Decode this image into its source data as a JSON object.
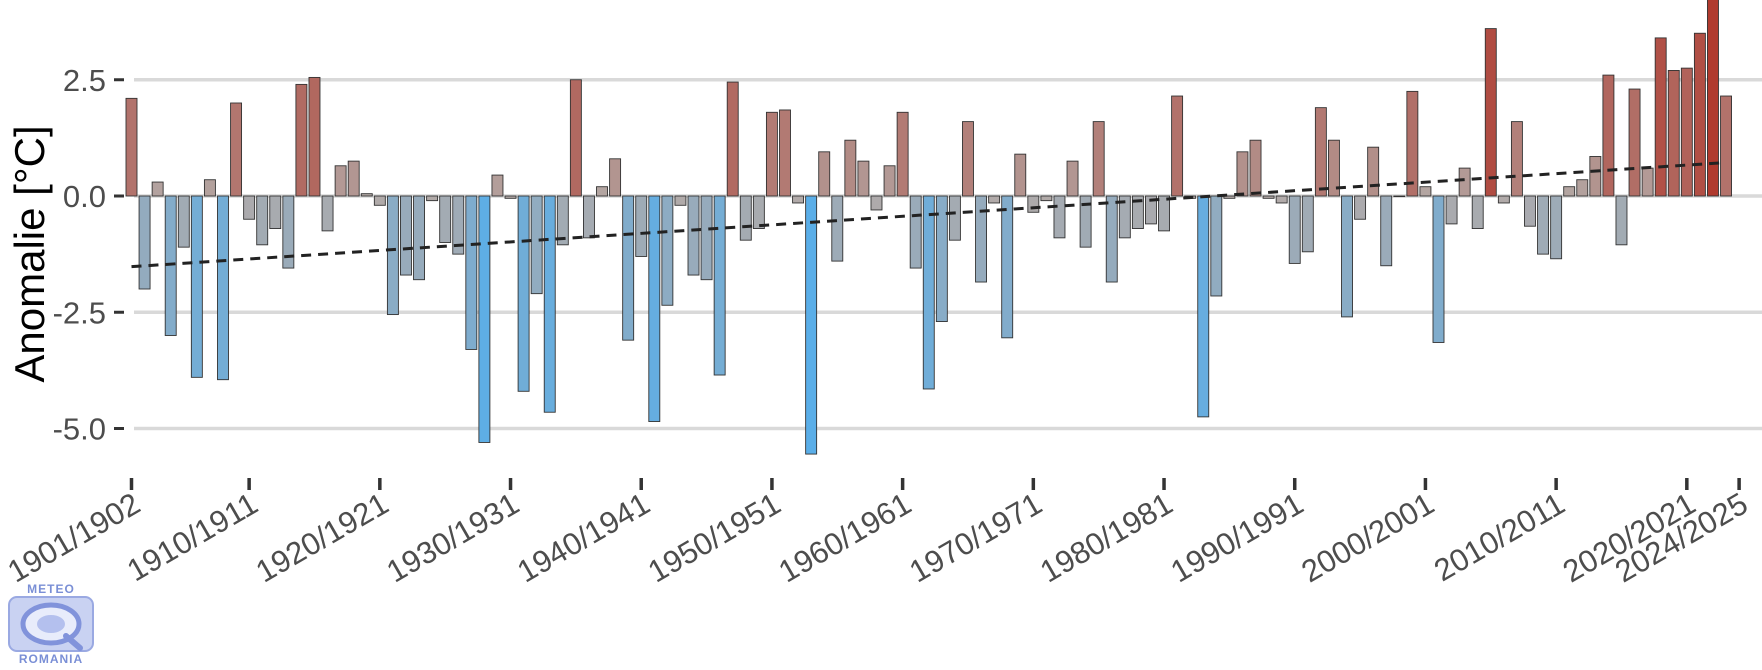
{
  "logo": {
    "top_text": "METEO",
    "bottom_text": "ROMANIA"
  },
  "chart_data": {
    "type": "bar",
    "title": "",
    "xlabel": "",
    "ylabel": "Anomalie [°C]",
    "ylim": [
      -5.7,
      4.2
    ],
    "yticks": [
      2.5,
      0.0,
      -2.5,
      -5.0
    ],
    "ytick_labels": [
      "2.5",
      "0.0",
      "-2.5",
      "-5.0"
    ],
    "grid": "horizontal",
    "x_start": 1901,
    "xticks": [
      1901,
      1910,
      1920,
      1930,
      1940,
      1950,
      1960,
      1970,
      1980,
      1990,
      2000,
      2010,
      2020,
      2024
    ],
    "xtick_labels": [
      "1901/1902",
      "1910/1911",
      "1920/1921",
      "1930/1931",
      "1940/1941",
      "1950/1951",
      "1960/1961",
      "1970/1971",
      "1980/1981",
      "1990/1991",
      "2000/2001",
      "2010/2011",
      "2020/2021",
      "2024/2025"
    ],
    "colors": {
      "warm": "#b03a2e",
      "neutral": "#b3aaa7",
      "cold": "#5aaee8",
      "trend": "#222222",
      "grid": "#d9d9d9"
    },
    "trend": {
      "start": -1.52,
      "end": 0.72
    },
    "values": [
      2.1,
      -2.0,
      0.3,
      -3.0,
      -1.1,
      -3.9,
      0.35,
      -3.95,
      2.0,
      -0.5,
      -1.05,
      -0.7,
      -1.55,
      2.4,
      2.55,
      -0.75,
      0.65,
      0.75,
      0.05,
      -0.2,
      -2.55,
      -1.7,
      -1.8,
      -0.1,
      -1.0,
      -1.25,
      -3.3,
      -5.3,
      0.45,
      -0.05,
      -4.2,
      -2.1,
      -4.65,
      -1.05,
      2.5,
      -0.9,
      0.2,
      0.8,
      -3.1,
      -1.3,
      -4.85,
      -2.35,
      -0.2,
      -1.7,
      -1.8,
      -3.85,
      2.45,
      -0.95,
      -0.7,
      1.8,
      1.85,
      -0.15,
      -5.55,
      0.95,
      -1.4,
      1.2,
      0.75,
      -0.3,
      0.65,
      1.8,
      -1.55,
      -4.15,
      -2.7,
      -0.95,
      1.6,
      -1.85,
      -0.15,
      -3.05,
      0.9,
      -0.35,
      -0.1,
      -0.9,
      0.75,
      -1.1,
      1.6,
      -1.85,
      -0.9,
      -0.7,
      -0.6,
      -0.75,
      2.15,
      -0.05,
      -4.75,
      -2.15,
      -0.05,
      0.95,
      1.2,
      -0.05,
      -0.15,
      -1.45,
      -1.2,
      1.9,
      1.2,
      -2.6,
      -0.5,
      1.05,
      -1.5,
      0.0,
      2.25,
      0.2,
      -3.15,
      -0.6,
      0.6,
      -0.7,
      3.6,
      -0.15,
      1.6,
      -0.65,
      -1.25,
      -1.35,
      0.2,
      0.35,
      0.85,
      2.6,
      -1.05,
      2.3,
      0.6,
      3.4,
      2.7,
      2.75,
      3.5,
      4.3,
      2.15
    ]
  }
}
